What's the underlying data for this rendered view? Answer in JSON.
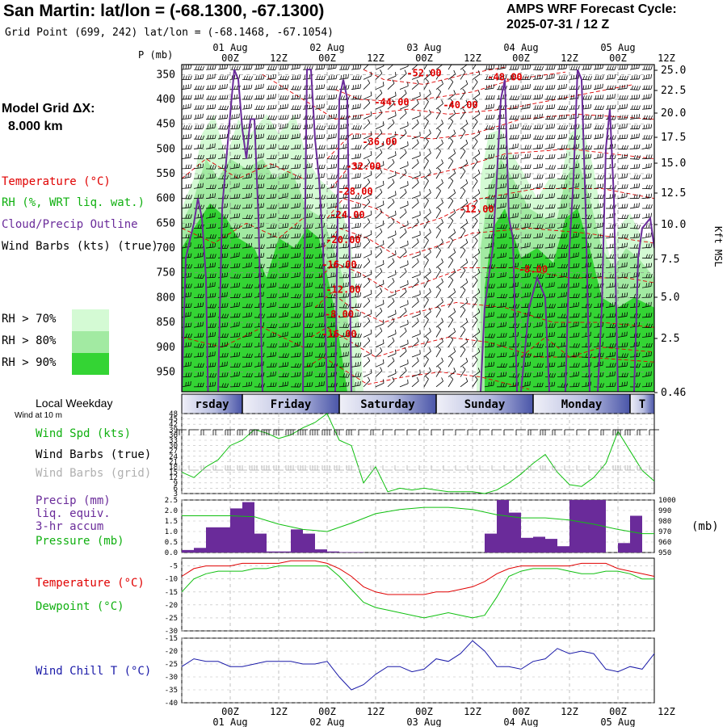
{
  "header": {
    "title": "San Martin:  lat/lon = (-68.1300, -67.1300)",
    "subtitle": "Grid Point (699, 242) lat/lon = (-68.1468, -67.1054)",
    "cycle_line1": "AMPS WRF Forecast Cycle:",
    "cycle_line2": "2025-07-31 / 12  Z"
  },
  "top_axis": {
    "dates": [
      "01 Aug",
      "02 Aug",
      "03 Aug",
      "04 Aug",
      "05 Aug"
    ],
    "hours": [
      "00Z",
      "12Z",
      "00Z",
      "12Z",
      "00Z",
      "12Z",
      "00Z",
      "12Z",
      "00Z",
      "12Z"
    ]
  },
  "bottom_axis": {
    "dates": [
      "01 Aug",
      "02 Aug",
      "03 Aug",
      "04 Aug",
      "05 Aug"
    ],
    "hours": [
      "00Z",
      "12Z",
      "00Z",
      "12Z",
      "00Z",
      "12Z",
      "00Z",
      "12Z",
      "00Z",
      "12Z"
    ]
  },
  "left_legend": {
    "grid_label": "Model Grid ΔX:",
    "grid_value": "8.000 km",
    "temperature": "Temperature (°C)",
    "rh": "RH (%, WRT liq. wat.)",
    "cloud": "Cloud/Precip Outline",
    "wind": "Wind Barbs (kts) (true)",
    "rh70": "RH > 70%",
    "rh80": "RH > 80%",
    "rh90": "RH > 90%",
    "rh70_color": "#d4fad4",
    "rh80_color": "#a2eaa2",
    "rh90_color": "#34d434"
  },
  "pressure_axis": {
    "title": "P (mb)",
    "ticks": [
      "350",
      "400",
      "450",
      "500",
      "550",
      "600",
      "650",
      "700",
      "750",
      "800",
      "850",
      "900",
      "950"
    ]
  },
  "height_axis": {
    "title": "Kft MSL",
    "ticks": [
      "25.0",
      "22.5",
      "20.0",
      "17.5",
      "15.0",
      "12.5",
      "10.0",
      "7.5",
      "5.0",
      "2.5",
      "0.46"
    ]
  },
  "weekday_bar": {
    "label": "Local Weekday",
    "days": [
      "rsday",
      "Friday",
      "Saturday",
      "Sunday",
      "Monday",
      "T"
    ]
  },
  "wind_panel": {
    "note": "Wind at 10 m",
    "spd_label": "Wind Spd (kts)",
    "barbs_true": "Wind Barbs (true)",
    "barbs_grid": "Wind Barbs (grid)",
    "yticks": [
      "48",
      "45",
      "42",
      "39",
      "36",
      "33",
      "30",
      "27",
      "24",
      "21",
      "18",
      "15",
      "12",
      "9",
      "6",
      "3"
    ]
  },
  "precip_panel": {
    "label1": "Precip (mm)",
    "label2": "liq. equiv.",
    "label3": "3-hr accum",
    "pressure_label": "Pressure (mb)",
    "left_ticks": [
      "2.5",
      "2.0",
      "1.5",
      "1.0",
      "0.5",
      "0.0"
    ],
    "right_ticks": [
      "1000",
      "990",
      "980",
      "970",
      "960",
      "950"
    ],
    "right_unit": "(mb)"
  },
  "temp_panel": {
    "temp_label": "Temperature (°C)",
    "dew_label": "Dewpoint (°C)",
    "yticks": [
      "-5",
      "-10",
      "-15",
      "-20",
      "-25",
      "-30"
    ]
  },
  "chill_panel": {
    "label": "Wind Chill T (°C)",
    "yticks": [
      "-15",
      "-20",
      "-25",
      "-30",
      "-35",
      "-40"
    ]
  },
  "colors": {
    "temperature": "#e00000",
    "dewpoint": "#10c010",
    "pressure": "#10c010",
    "precip": "#6a2b9a",
    "cloud": "#6a2b9a",
    "windchill": "#1a1aa8",
    "windspeed": "#10c010"
  },
  "chart_data": [
    {
      "type": "heatmap",
      "name": "Cross-section: RH fill, temperature contours, cloud outline, wind barbs",
      "x_unit": "forecast hour from 2025-07-31 12Z",
      "xlim": [
        0,
        117
      ],
      "ylabel": "P (mb)",
      "ylim": [
        330,
        990
      ],
      "temperature_contour_labels": [
        "-52.00",
        "-48.00",
        "-44.00",
        "-40.00",
        "-36.00",
        "-32.00",
        "-28.00",
        "-24.00",
        "-20.00",
        "-16.00",
        "-12.00",
        "-8.00",
        "-16.00",
        "-12.00",
        "-8.00"
      ]
    },
    {
      "type": "line",
      "name": "10 m wind speed",
      "ylabel": "Wind Spd (kts)",
      "ylim": [
        3,
        48
      ],
      "x": [
        0,
        3,
        6,
        9,
        12,
        15,
        18,
        21,
        24,
        27,
        30,
        33,
        36,
        39,
        42,
        45,
        48,
        51,
        54,
        57,
        60,
        63,
        66,
        69,
        72,
        75,
        78,
        81,
        84,
        87,
        90,
        93,
        96,
        99,
        102,
        105,
        108,
        111,
        114,
        117
      ],
      "values": [
        15,
        12,
        18,
        22,
        30,
        33,
        39,
        37,
        34,
        36,
        40,
        43,
        48,
        33,
        30,
        9,
        18,
        4,
        6,
        5,
        6,
        5,
        4,
        4,
        4,
        3,
        5,
        9,
        14,
        20,
        25,
        15,
        8,
        7,
        12,
        20,
        38,
        27,
        16,
        10
      ]
    },
    {
      "type": "bar",
      "name": "Precip 3-hr accum (mm)",
      "ylim": [
        0,
        2.5
      ],
      "x": [
        0,
        3,
        6,
        9,
        12,
        15,
        18,
        21,
        24,
        27,
        30,
        33,
        36,
        39,
        42,
        45,
        48,
        51,
        54,
        57,
        60,
        63,
        66,
        69,
        72,
        75,
        78,
        81,
        84,
        87,
        90,
        93,
        96,
        99,
        102,
        105,
        108,
        111,
        114,
        117
      ],
      "values": [
        0.12,
        0.22,
        1.2,
        1.2,
        2.1,
        2.4,
        0.9,
        0.05,
        0.05,
        1.1,
        0.9,
        0.15,
        0.05,
        0.02,
        0.02,
        0,
        0,
        0,
        0,
        0,
        0,
        0,
        0,
        0,
        0,
        0.9,
        2.5,
        1.9,
        0.7,
        0.75,
        0.65,
        0.3,
        2.5,
        2.5,
        2.5,
        0,
        0.45,
        1.75,
        0,
        0
      ]
    },
    {
      "type": "line",
      "name": "Pressure (mb)",
      "ylim": [
        950,
        1000
      ],
      "x": [
        0,
        6,
        12,
        18,
        24,
        30,
        36,
        42,
        48,
        54,
        60,
        66,
        72,
        78,
        84,
        90,
        96,
        102,
        108,
        114,
        117
      ],
      "values": [
        985,
        985,
        985,
        984,
        977,
        972,
        970,
        978,
        987,
        991,
        993,
        993,
        991,
        986,
        983,
        983,
        981,
        977,
        972,
        968,
        968
      ]
    },
    {
      "type": "line",
      "name": "Temperature (°C)",
      "ylim": [
        -30,
        -2
      ],
      "x": [
        0,
        3,
        6,
        9,
        12,
        15,
        18,
        21,
        24,
        27,
        30,
        33,
        36,
        39,
        42,
        45,
        48,
        51,
        54,
        57,
        60,
        63,
        66,
        69,
        72,
        75,
        78,
        81,
        84,
        87,
        90,
        93,
        96,
        99,
        102,
        105,
        108,
        111,
        114,
        117
      ],
      "values": [
        -9,
        -6,
        -5,
        -5,
        -5,
        -4,
        -4,
        -4,
        -4,
        -3,
        -3,
        -3,
        -4,
        -6,
        -9,
        -13,
        -15,
        -16,
        -16,
        -16,
        -16,
        -15,
        -15,
        -14,
        -13,
        -11,
        -8,
        -6,
        -5,
        -5,
        -5,
        -5,
        -5,
        -4,
        -4,
        -4,
        -6,
        -7,
        -8,
        -9
      ]
    },
    {
      "type": "line",
      "name": "Dewpoint (°C)",
      "ylim": [
        -30,
        -2
      ],
      "x": [
        0,
        3,
        6,
        9,
        12,
        15,
        18,
        21,
        24,
        27,
        30,
        33,
        36,
        39,
        42,
        45,
        48,
        51,
        54,
        57,
        60,
        63,
        66,
        69,
        72,
        75,
        78,
        81,
        84,
        87,
        90,
        93,
        96,
        99,
        102,
        105,
        108,
        111,
        114,
        117
      ],
      "values": [
        -15,
        -10,
        -8,
        -7,
        -7,
        -7,
        -6,
        -6,
        -5,
        -5,
        -5,
        -5,
        -5,
        -9,
        -14,
        -19,
        -21,
        -22,
        -23,
        -24,
        -25,
        -24,
        -23,
        -24,
        -25,
        -24,
        -17,
        -9,
        -7,
        -6,
        -6,
        -6,
        -7,
        -8,
        -8,
        -7,
        -7,
        -8,
        -10,
        -10
      ]
    },
    {
      "type": "line",
      "name": "Wind Chill T (°C)",
      "ylim": [
        -40,
        -15
      ],
      "x": [
        0,
        3,
        6,
        9,
        12,
        15,
        18,
        21,
        24,
        27,
        30,
        33,
        36,
        39,
        42,
        45,
        48,
        51,
        54,
        57,
        60,
        63,
        66,
        69,
        72,
        75,
        78,
        81,
        84,
        87,
        90,
        93,
        96,
        99,
        102,
        105,
        108,
        111,
        114,
        117
      ],
      "values": [
        -26,
        -23,
        -24,
        -24,
        -26,
        -26,
        -25,
        -24,
        -24,
        -24,
        -25,
        -25,
        -24,
        -30,
        -35,
        -33,
        -29,
        -26,
        -26,
        -28,
        -27,
        -23,
        -24,
        -21,
        -16,
        -20,
        -26,
        -26,
        -27,
        -24,
        -23,
        -19,
        -21,
        -20,
        -21,
        -27,
        -28,
        -26,
        -27,
        -21
      ]
    }
  ]
}
